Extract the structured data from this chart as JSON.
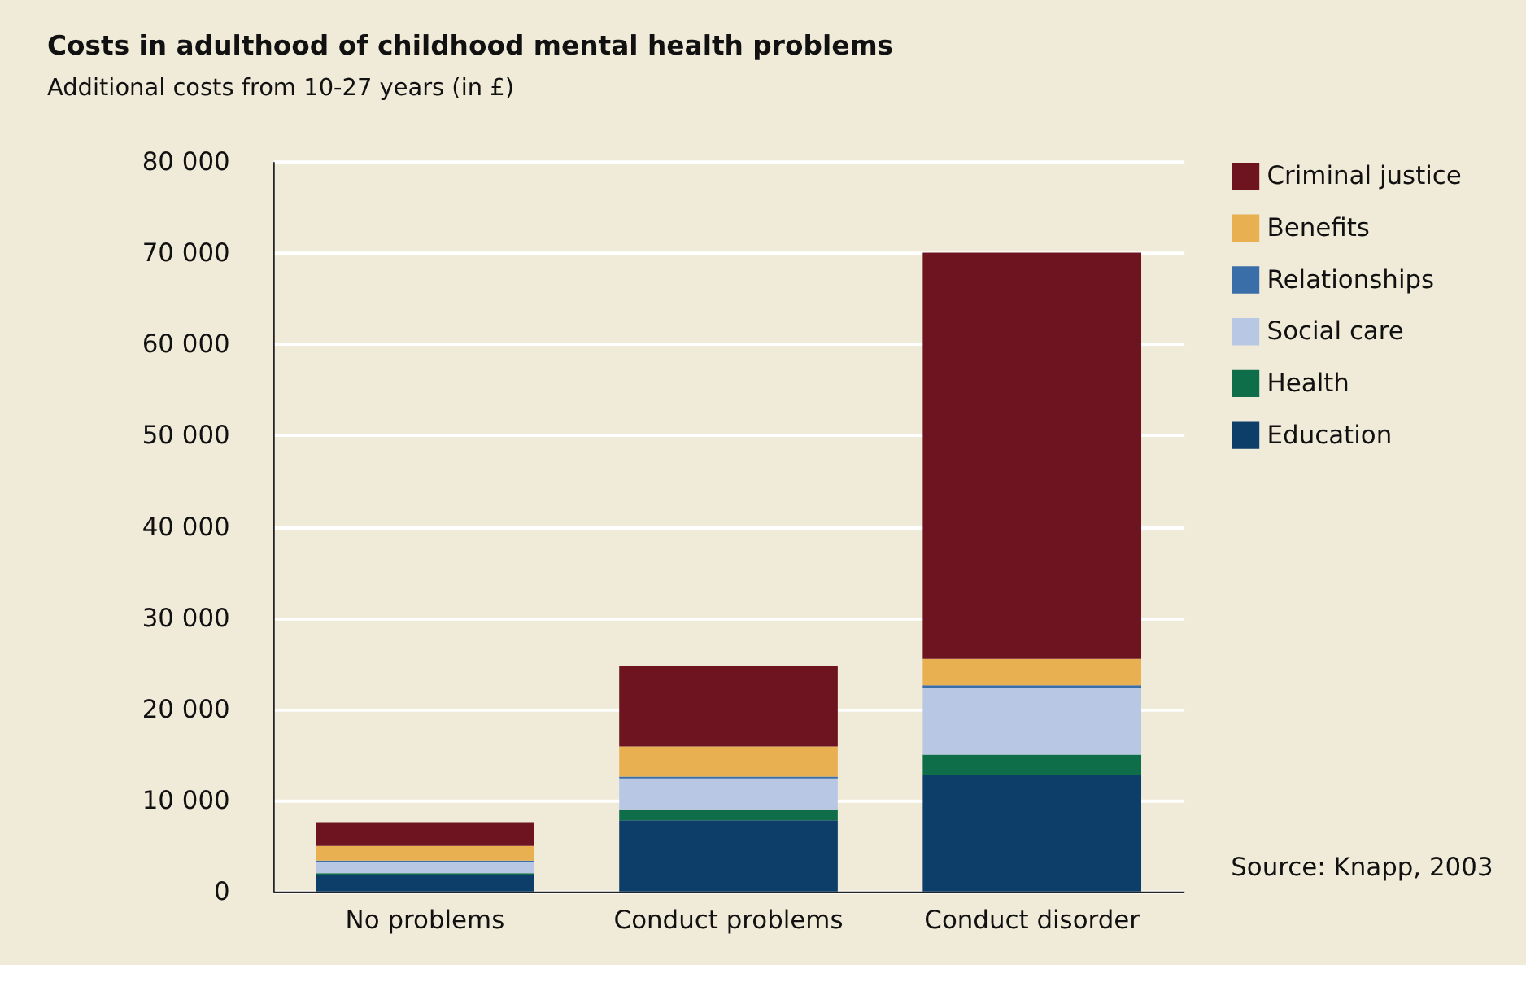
{
  "chart_data": {
    "type": "bar",
    "title": "Costs in adulthood of childhood mental health problems",
    "subtitle": "Additional costs from 10-27 years (in £)",
    "categories": [
      "No problems",
      "Conduct problems",
      "Conduct disorder"
    ],
    "stacked": true,
    "series": [
      {
        "name": "Education",
        "color": "#0d3e6a",
        "values": [
          1800,
          7800,
          12800
        ]
      },
      {
        "name": "Health",
        "color": "#0e6e4a",
        "values": [
          200,
          1200,
          2200
        ]
      },
      {
        "name": "Social care",
        "color": "#b8c8e4",
        "values": [
          1200,
          3400,
          7300
        ]
      },
      {
        "name": "Relationships",
        "color": "#3a6ea8",
        "values": [
          200,
          200,
          300
        ]
      },
      {
        "name": "Benefits",
        "color": "#e8b050",
        "values": [
          1600,
          3300,
          2900
        ]
      },
      {
        "name": "Criminal justice",
        "color": "#6e1420",
        "values": [
          2600,
          8800,
          44500
        ]
      }
    ],
    "ylim": [
      0,
      80000
    ],
    "yticks": [
      0,
      {
        "value": 10000,
        "label": "10 000"
      },
      {
        "value": 20000,
        "label": "20 000"
      },
      {
        "value": 30000,
        "label": "30 000"
      },
      {
        "value": 40000,
        "label": "40 000"
      },
      {
        "value": 50000,
        "label": "50 000"
      },
      {
        "value": 60000,
        "label": "60 000"
      },
      {
        "value": 70000,
        "label": "70 000"
      },
      {
        "value": 80000,
        "label": "80 000"
      }
    ],
    "grid": "y",
    "legend": "right",
    "annotations": [
      "Source: Knapp, 2003"
    ]
  }
}
